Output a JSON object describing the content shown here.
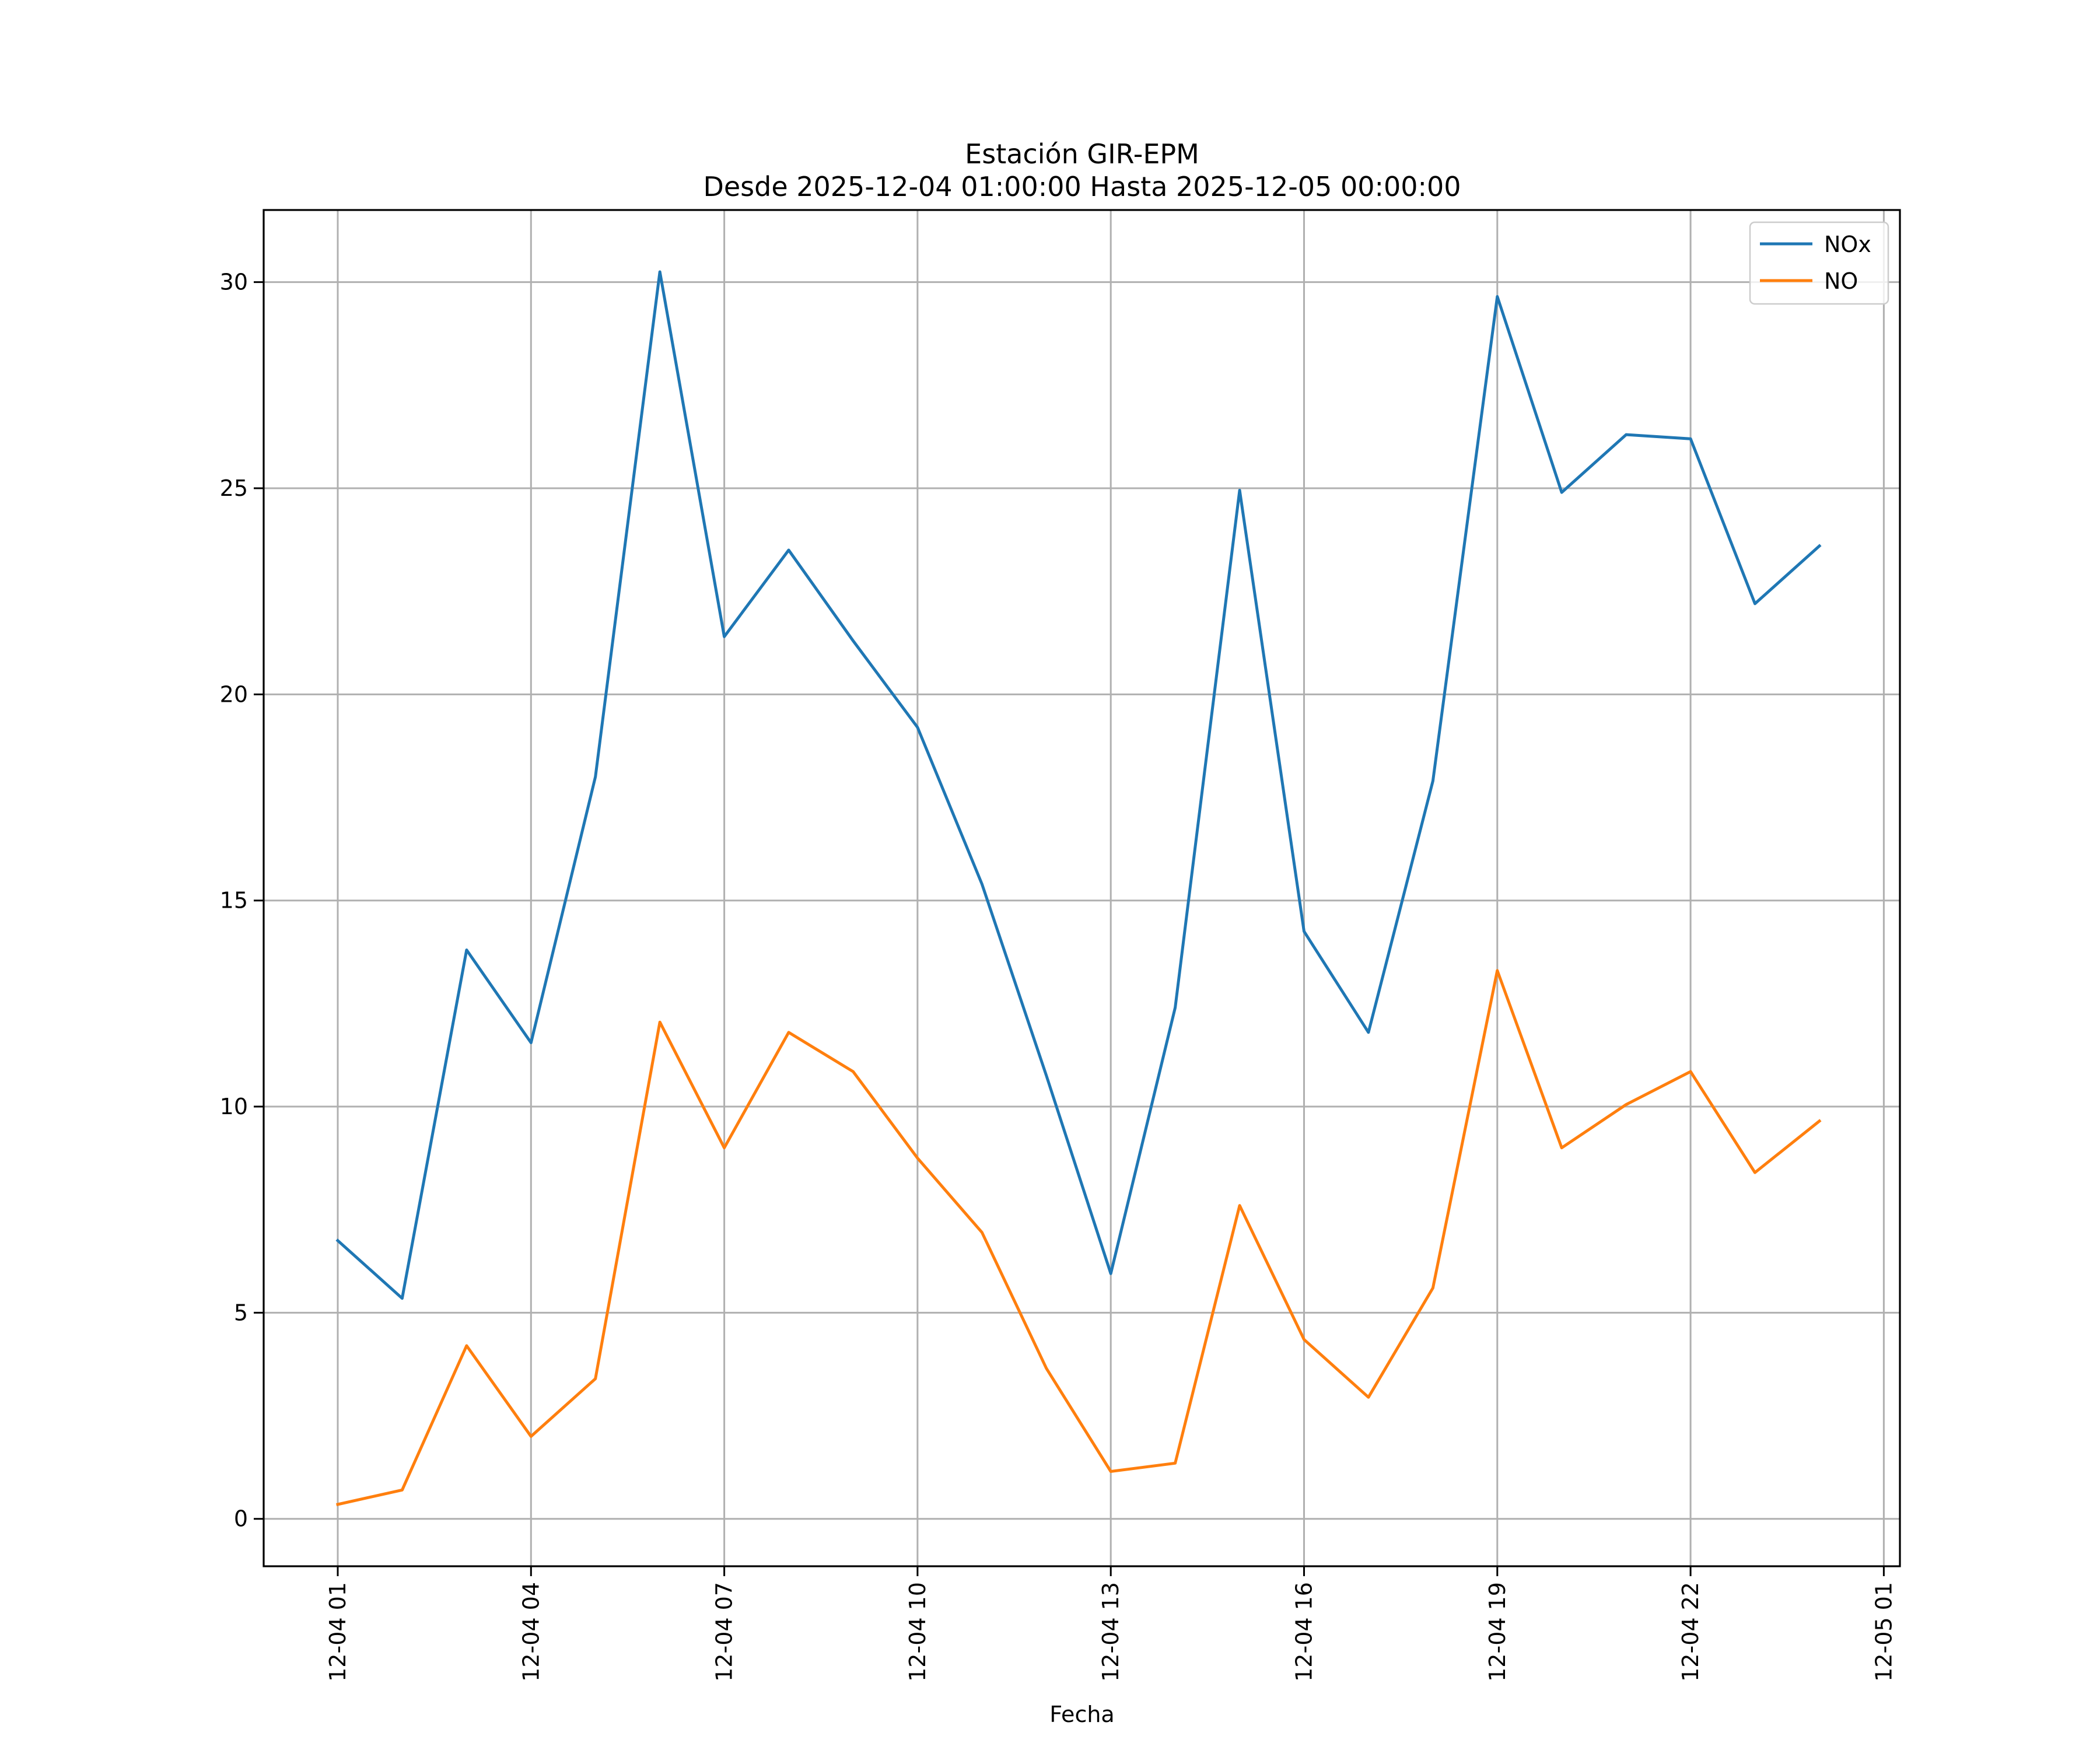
{
  "chart_data": {
    "type": "line",
    "title": "Estación GIR-EPM",
    "subtitle": "Desde 2025-12-04 01:00:00 Hasta 2025-12-05 00:00:00",
    "xlabel": "Fecha",
    "ylabel": "",
    "grid": true,
    "legend_position": "top-right",
    "ylim": [
      -1.15,
      31.75
    ],
    "xlim": [
      -1.15,
      24.25
    ],
    "yticks": [
      0,
      5,
      10,
      15,
      20,
      25,
      30
    ],
    "xticks": [
      {
        "hour": 0,
        "label": "12-04 01"
      },
      {
        "hour": 3,
        "label": "12-04 04"
      },
      {
        "hour": 6,
        "label": "12-04 07"
      },
      {
        "hour": 9,
        "label": "12-04 10"
      },
      {
        "hour": 12,
        "label": "12-04 13"
      },
      {
        "hour": 15,
        "label": "12-04 16"
      },
      {
        "hour": 18,
        "label": "12-04 19"
      },
      {
        "hour": 21,
        "label": "12-04 22"
      },
      {
        "hour": 24,
        "label": "12-05 01"
      }
    ],
    "x": [
      0,
      1,
      2,
      3,
      4,
      5,
      6,
      7,
      8,
      9,
      10,
      11,
      12,
      13,
      14,
      15,
      16,
      17,
      18,
      19,
      20,
      21,
      22,
      23
    ],
    "series": [
      {
        "name": "NOx",
        "color": "#1f77b4",
        "values": [
          6.75,
          5.35,
          13.8,
          11.55,
          18.0,
          30.25,
          21.4,
          23.5,
          21.3,
          19.2,
          15.4,
          10.75,
          5.95,
          12.4,
          24.95,
          14.25,
          11.8,
          17.9,
          29.65,
          24.9,
          26.3,
          26.2,
          22.2,
          23.6
        ]
      },
      {
        "name": "NO",
        "color": "#ff7f0e",
        "values": [
          0.35,
          0.7,
          4.2,
          2.0,
          3.4,
          12.05,
          9.0,
          11.8,
          10.85,
          8.75,
          6.95,
          3.65,
          1.15,
          1.35,
          7.6,
          4.35,
          2.95,
          5.6,
          13.3,
          9.0,
          10.05,
          10.85,
          8.4,
          9.65
        ]
      }
    ]
  }
}
